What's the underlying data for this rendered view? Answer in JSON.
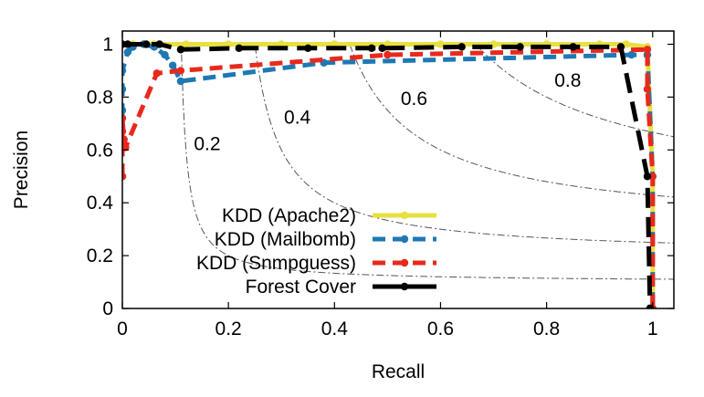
{
  "chart_data": {
    "type": "line",
    "xlabel": "Recall",
    "ylabel": "Precision",
    "xlim": [
      0,
      1.04
    ],
    "ylim": [
      0,
      1.05
    ],
    "xticks": [
      "0",
      "0.2",
      "0.4",
      "0.6",
      "0.8",
      "1"
    ],
    "yticks": [
      "0",
      "0.2",
      "0.4",
      "0.6",
      "0.8",
      "1"
    ],
    "grid": false,
    "legend_position": "bottom-center",
    "series": [
      {
        "name": "KDD (Apache2)",
        "color": "#e8e040",
        "style": "solid",
        "marker": "circle",
        "x": [
          0,
          0.02,
          0.06,
          0.12,
          0.2,
          0.3,
          0.4,
          0.5,
          0.6,
          0.7,
          0.8,
          0.9,
          0.95,
          0.99,
          1.0,
          1.0
        ],
        "y": [
          1,
          1,
          1,
          1,
          1,
          1,
          1,
          1,
          1,
          1,
          1,
          1,
          1,
          0.99,
          0.5,
          0
        ]
      },
      {
        "name": "KDD (Mailbomb)",
        "color": "#1f78b4",
        "style": "dashed",
        "marker": "circle",
        "x": [
          0,
          0.0,
          0.0,
          0.0,
          0.01,
          0.02,
          0.04,
          0.06,
          0.08,
          0.095,
          0.11,
          0.38,
          0.96,
          0.99,
          1.0,
          1.0
        ],
        "y": [
          0.5,
          0.75,
          0.83,
          0.9,
          0.97,
          0.99,
          1.0,
          0.99,
          0.96,
          0.92,
          0.86,
          0.93,
          0.96,
          0.96,
          0.5,
          0
        ]
      },
      {
        "name": "KDD (Snmpguess)",
        "color": "#e8291c",
        "style": "dashed",
        "marker": "circle",
        "x": [
          0,
          0.0,
          0.0,
          0.003,
          0.006,
          0.065,
          0.11,
          0.5,
          0.99,
          0.99,
          1.0,
          1.0
        ],
        "y": [
          0.5,
          0.67,
          0.72,
          0.64,
          0.61,
          0.89,
          0.9,
          0.96,
          0.98,
          0.83,
          0.5,
          0
        ]
      },
      {
        "name": "Forest Cover",
        "color": "#000000",
        "style": "long-dash",
        "marker": "circle",
        "x": [
          0,
          0.01,
          0.045,
          0.07,
          0.11,
          0.22,
          0.35,
          0.47,
          0.49,
          0.64,
          0.75,
          0.85,
          0.94,
          0.99,
          0.995
        ],
        "y": [
          1,
          1,
          1,
          1,
          0.98,
          0.985,
          0.985,
          0.985,
          0.985,
          0.99,
          0.99,
          0.99,
          0.99,
          0.5,
          0
        ]
      }
    ],
    "iso_f1_curves": [
      {
        "f": 0.2,
        "label": "0.2"
      },
      {
        "f": 0.4,
        "label": "0.4"
      },
      {
        "f": 0.6,
        "label": "0.6"
      },
      {
        "f": 0.8,
        "label": "0.8"
      }
    ]
  }
}
